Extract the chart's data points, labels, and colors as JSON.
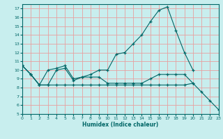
{
  "xlabel": "Humidex (Indice chaleur)",
  "bg_color": "#c8eeee",
  "grid_color": "#e8a0a0",
  "line_color": "#006666",
  "xlim": [
    0,
    23
  ],
  "ylim": [
    5,
    17.5
  ],
  "yticks": [
    5,
    6,
    7,
    8,
    9,
    10,
    11,
    12,
    13,
    14,
    15,
    16,
    17
  ],
  "xticks": [
    0,
    1,
    2,
    3,
    4,
    5,
    6,
    7,
    8,
    9,
    10,
    11,
    12,
    13,
    14,
    15,
    16,
    17,
    18,
    19,
    20,
    21,
    22,
    23
  ],
  "curves": [
    {
      "x": [
        0,
        1,
        2,
        3,
        4,
        5,
        6,
        7,
        8,
        9,
        10,
        11,
        12,
        13,
        14,
        15,
        16,
        17,
        18,
        19,
        20
      ],
      "y": [
        10.5,
        9.5,
        8.3,
        10.0,
        10.2,
        10.5,
        9.0,
        9.2,
        9.5,
        10.0,
        10.0,
        11.8,
        12.0,
        13.0,
        14.0,
        15.5,
        16.8,
        17.2,
        14.5,
        12.0,
        10.0
      ]
    },
    {
      "x": [
        0,
        1,
        2,
        3,
        4,
        5,
        6,
        7,
        8,
        9,
        10,
        11,
        12,
        13,
        14,
        15,
        16,
        17,
        18,
        19,
        20
      ],
      "y": [
        10.5,
        9.5,
        8.3,
        8.3,
        10.0,
        10.2,
        8.8,
        9.2,
        9.2,
        9.2,
        8.5,
        8.5,
        8.5,
        8.5,
        8.5,
        9.0,
        9.5,
        9.5,
        9.5,
        9.5,
        8.5
      ]
    },
    {
      "x": [
        0,
        1,
        2,
        3,
        4,
        5,
        6,
        7,
        8,
        9,
        10,
        11,
        12,
        13,
        14,
        15,
        16,
        17,
        18,
        19,
        20,
        21,
        22,
        23
      ],
      "y": [
        10.5,
        9.5,
        8.3,
        8.3,
        8.3,
        8.3,
        8.3,
        8.3,
        8.3,
        8.3,
        8.3,
        8.3,
        8.3,
        8.3,
        8.3,
        8.3,
        8.3,
        8.3,
        8.3,
        8.3,
        8.5,
        7.5,
        6.5,
        5.5
      ]
    }
  ]
}
